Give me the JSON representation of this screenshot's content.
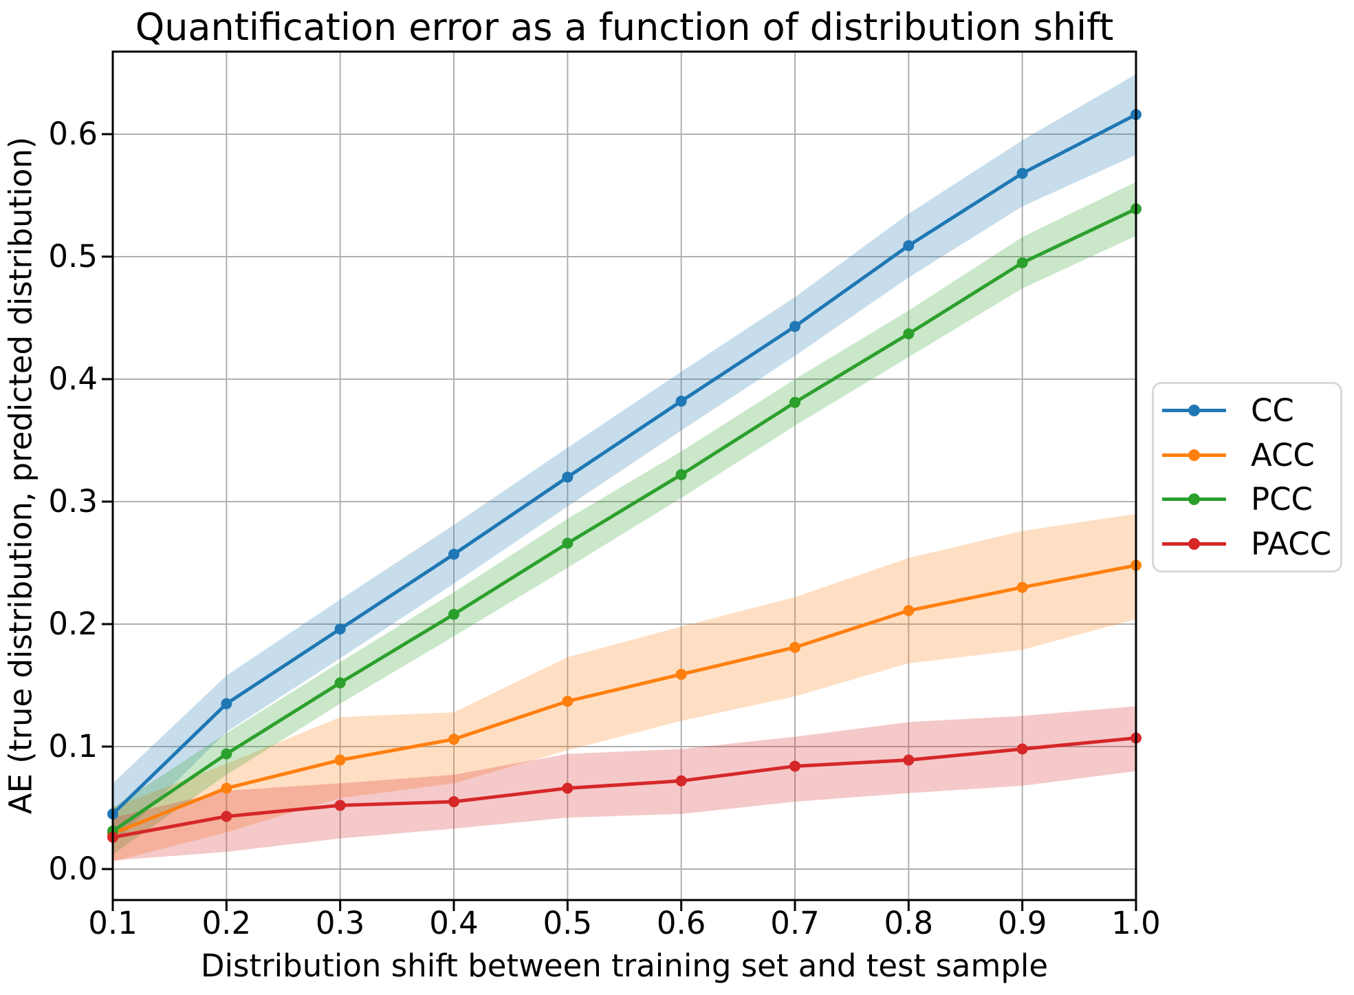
{
  "figure": {
    "title": "Quantification error as a function of distribution shift",
    "xlabel": "Distribution shift between training set and test sample",
    "ylabel": "AE (true distribution, predicted distribution)"
  },
  "chart_data": {
    "type": "line",
    "title": "Quantification error as a function of distribution shift",
    "xlabel": "Distribution shift between training set and test sample",
    "ylabel": "AE (true distribution, predicted distribution)",
    "grid": true,
    "grid_color": "#b0b0b0",
    "axis_color": "#000000",
    "band_opacity": 0.25,
    "legend_position": "center-right-outside",
    "xlim": [
      0.1,
      1.0
    ],
    "ylim": [
      -0.0253,
      0.6674
    ],
    "x": [
      0.1,
      0.2,
      0.3,
      0.4,
      0.5,
      0.6,
      0.7,
      0.8,
      0.9,
      1.0
    ],
    "xticks": {
      "values": [
        0.1,
        0.2,
        0.3,
        0.4,
        0.5,
        0.6,
        0.7,
        0.8,
        0.9,
        1.0
      ],
      "labels": [
        "0.1",
        "0.2",
        "0.3",
        "0.4",
        "0.5",
        "0.6",
        "0.7",
        "0.8",
        "0.9",
        "1.0"
      ]
    },
    "yticks": {
      "values": [
        0.0,
        0.1,
        0.2,
        0.3,
        0.4,
        0.5,
        0.6
      ],
      "labels": [
        "0.0",
        "0.1",
        "0.2",
        "0.3",
        "0.4",
        "0.5",
        "0.6"
      ]
    },
    "series": [
      {
        "name": "CC",
        "color": "#1f77b4",
        "values": [
          0.045,
          0.135,
          0.196,
          0.257,
          0.32,
          0.382,
          0.443,
          0.509,
          0.568,
          0.616
        ],
        "band_lower": [
          0.02,
          0.112,
          0.172,
          0.233,
          0.296,
          0.358,
          0.419,
          0.483,
          0.541,
          0.583
        ],
        "band_upper": [
          0.07,
          0.158,
          0.22,
          0.281,
          0.344,
          0.406,
          0.467,
          0.535,
          0.595,
          0.649
        ]
      },
      {
        "name": "ACC",
        "color": "#ff7f0e",
        "values": [
          0.029,
          0.066,
          0.089,
          0.106,
          0.137,
          0.159,
          0.181,
          0.211,
          0.23,
          0.248
        ],
        "band_lower": [
          0.006,
          0.03,
          0.058,
          0.07,
          0.097,
          0.121,
          0.141,
          0.168,
          0.179,
          0.204
        ],
        "band_upper": [
          0.05,
          0.086,
          0.124,
          0.128,
          0.173,
          0.198,
          0.222,
          0.254,
          0.276,
          0.29
        ]
      },
      {
        "name": "PCC",
        "color": "#2ca02c",
        "values": [
          0.031,
          0.094,
          0.152,
          0.208,
          0.266,
          0.322,
          0.381,
          0.437,
          0.495,
          0.539
        ],
        "band_lower": [
          0.012,
          0.077,
          0.135,
          0.19,
          0.246,
          0.303,
          0.362,
          0.418,
          0.474,
          0.517
        ],
        "band_upper": [
          0.05,
          0.111,
          0.169,
          0.226,
          0.286,
          0.341,
          0.4,
          0.456,
          0.516,
          0.561
        ]
      },
      {
        "name": "PACC",
        "color": "#d62728",
        "values": [
          0.026,
          0.043,
          0.052,
          0.055,
          0.066,
          0.072,
          0.084,
          0.089,
          0.098,
          0.107
        ],
        "band_lower": [
          0.007,
          0.014,
          0.025,
          0.033,
          0.042,
          0.045,
          0.055,
          0.062,
          0.068,
          0.08
        ],
        "band_upper": [
          0.042,
          0.064,
          0.07,
          0.077,
          0.094,
          0.098,
          0.108,
          0.12,
          0.125,
          0.133
        ]
      }
    ]
  }
}
